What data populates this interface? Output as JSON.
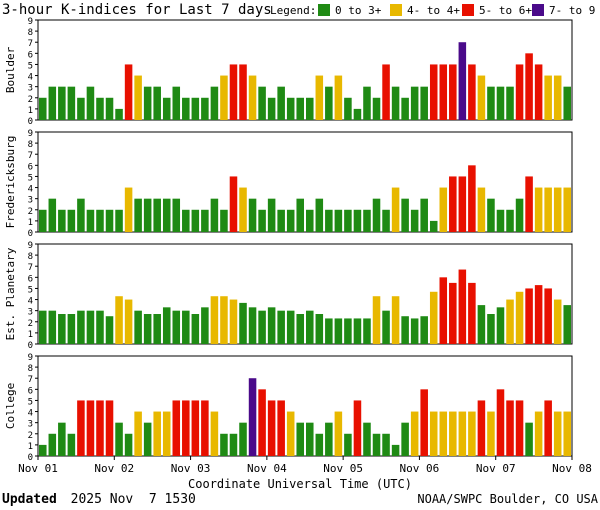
{
  "chart_data": {
    "type": "bar",
    "title": "3-hour K-indices for Last 7 days",
    "legend_title": "Legend:",
    "legend": [
      {
        "label": "0 to 3+",
        "color": "#1f8a14"
      },
      {
        "label": "4- to 4+",
        "color": "#e8b800"
      },
      {
        "label": "5- to 6+",
        "color": "#e81000"
      },
      {
        "label": "7- to 9",
        "color": "#4a0a8a"
      }
    ],
    "xlabel": "Coordinate Universal Time (UTC)",
    "x_ticks": [
      "Nov 01",
      "Nov 02",
      "Nov 03",
      "Nov 04",
      "Nov 05",
      "Nov 06",
      "Nov 07",
      "Nov 08"
    ],
    "ylim": [
      0,
      9
    ],
    "y_ticks": [
      "0",
      "1",
      "2",
      "3",
      "4",
      "5",
      "6",
      "7",
      "8",
      "9"
    ],
    "panels": [
      {
        "name": "Boulder",
        "values": [
          2,
          3,
          3,
          3,
          2,
          3,
          2,
          2,
          1,
          5,
          4,
          3,
          3,
          2,
          3,
          2,
          2,
          2,
          3,
          4,
          5,
          5,
          4,
          3,
          2,
          3,
          2,
          2,
          2,
          4,
          3,
          4,
          2,
          1,
          3,
          2,
          5,
          3,
          2,
          3,
          3,
          5,
          5,
          5,
          7,
          5,
          4,
          3,
          3,
          3,
          5,
          6,
          5,
          4,
          4,
          3,
          0,
          0,
          0,
          0
        ]
      },
      {
        "name": "Fredericksburg",
        "values": [
          2,
          3,
          2,
          2,
          3,
          2,
          2,
          2,
          2,
          4,
          3,
          3,
          3,
          3,
          3,
          2,
          2,
          2,
          3,
          2,
          5,
          4,
          3,
          2,
          3,
          2,
          2,
          3,
          2,
          3,
          2,
          2,
          2,
          2,
          2,
          3,
          2,
          4,
          3,
          2,
          3,
          1,
          4,
          5,
          5,
          6,
          4,
          3,
          2,
          2,
          3,
          5,
          4,
          4,
          4,
          4,
          3,
          0,
          0,
          0
        ]
      },
      {
        "name": "Est. Planetary",
        "values": [
          3,
          3,
          2.7,
          2.7,
          3,
          3,
          3,
          2.5,
          4.3,
          4,
          3,
          2.7,
          2.7,
          3.3,
          3,
          3,
          2.7,
          3.3,
          4.3,
          4.3,
          4,
          3.7,
          3.3,
          3,
          3.3,
          3,
          3,
          2.7,
          3,
          2.7,
          2.3,
          2.3,
          2.3,
          2.3,
          2.3,
          4.3,
          3,
          4.3,
          2.5,
          2.3,
          2.5,
          4.7,
          6,
          5.5,
          6.7,
          5.5,
          3.5,
          2.7,
          3.3,
          4,
          4.7,
          5,
          5.3,
          5,
          4,
          3.5,
          0,
          0,
          0,
          0
        ]
      },
      {
        "name": "College",
        "values": [
          1,
          2,
          3,
          2,
          5,
          5,
          5,
          5,
          3,
          2,
          4,
          3,
          4,
          4,
          5,
          5,
          5,
          5,
          4,
          2,
          2,
          3,
          7,
          6,
          5,
          5,
          4,
          3,
          3,
          2,
          3,
          4,
          2,
          5,
          3,
          2,
          2,
          1,
          3,
          4,
          6,
          4,
          4,
          4,
          4,
          4,
          5,
          4,
          6,
          5,
          5,
          3,
          4,
          5,
          4,
          4,
          5,
          4,
          5,
          5
        ]
      }
    ]
  },
  "footer": {
    "updated_label": "Updated",
    "updated_value": "2025 Nov  7 1530",
    "credit": "NOAA/SWPC Boulder, CO USA"
  }
}
